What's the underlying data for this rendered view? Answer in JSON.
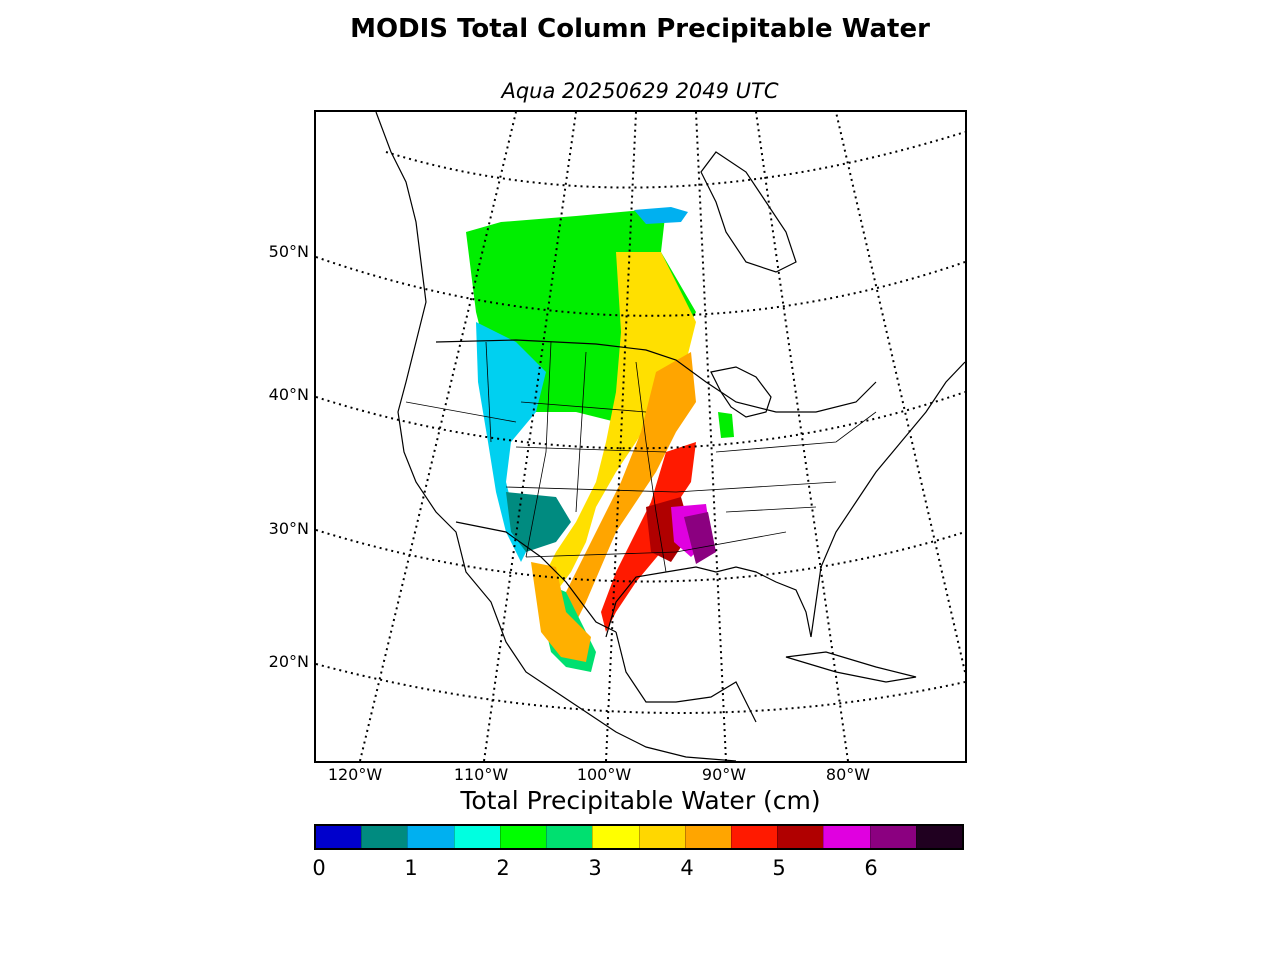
{
  "title": "MODIS Total Column Precipitable Water",
  "subtitle": "Aqua 20250629 2049 UTC",
  "map": {
    "projection": "conic",
    "lat_labels": [
      "50°N",
      "40°N",
      "30°N",
      "20°N"
    ],
    "lon_labels": [
      "120°W",
      "110°W",
      "100°W",
      "90°W",
      "80°W"
    ],
    "graticule_style": "dotted",
    "coastline_color": "#000000"
  },
  "colorbar": {
    "label": "Total Precipitable Water (cm)",
    "ticks": [
      "0",
      "1",
      "2",
      "3",
      "4",
      "5",
      "6"
    ],
    "range": [
      0,
      7
    ],
    "colors": [
      "#0000cc",
      "#008b80",
      "#00b0f0",
      "#00ffe0",
      "#00ff00",
      "#00e070",
      "#ffff00",
      "#ffd700",
      "#ffa500",
      "#ff1a00",
      "#b00000",
      "#e000e0",
      "#8b0080",
      "#200020"
    ]
  }
}
